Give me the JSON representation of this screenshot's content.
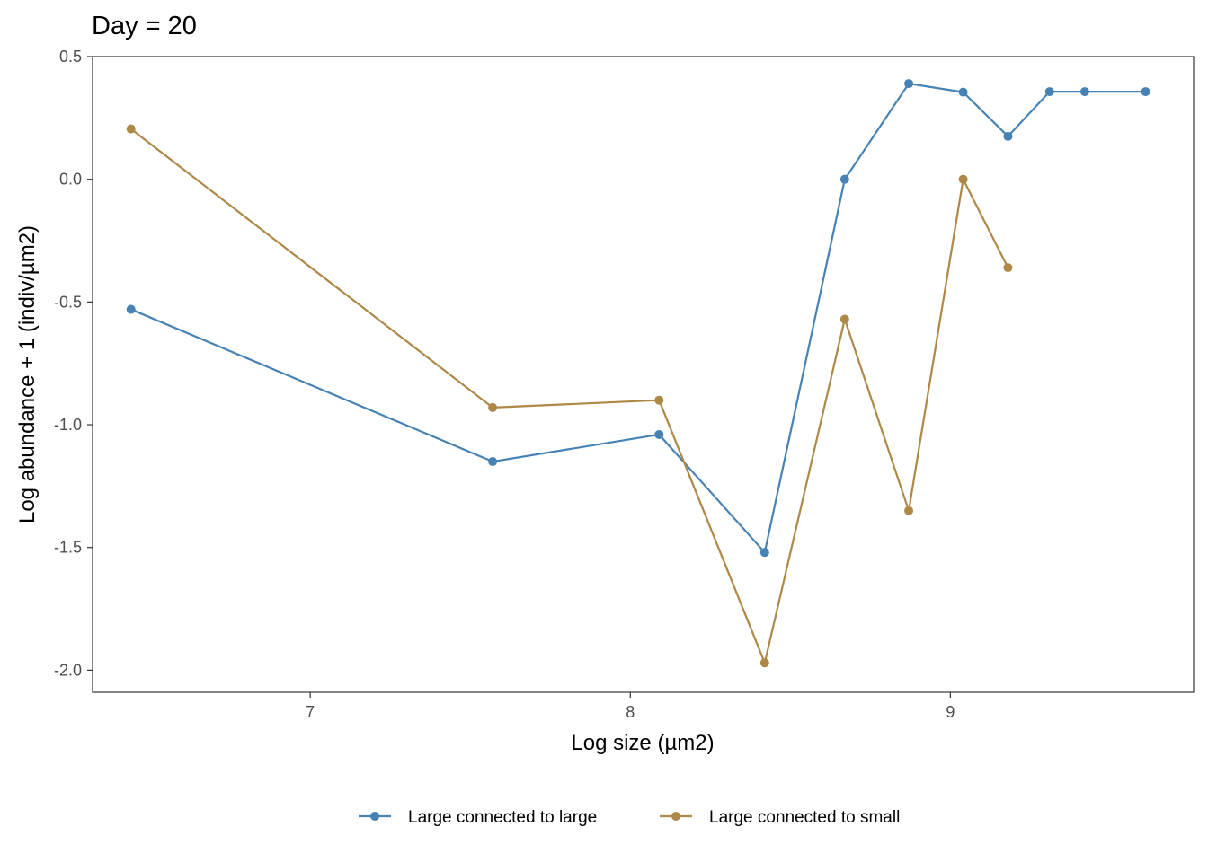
{
  "chart_data": {
    "type": "line",
    "title": "Day = 20",
    "xlabel": "Log size (µm2)",
    "ylabel": "Log abundance + 1 (indiv/µm2)",
    "xlim": [
      6.32,
      9.76
    ],
    "ylim": [
      -2.09,
      0.5
    ],
    "xticks": [
      7,
      8,
      9
    ],
    "xtick_labels": [
      "7",
      "8",
      "9"
    ],
    "yticks": [
      0.5,
      0.0,
      -0.5,
      -1.0,
      -1.5,
      -2.0
    ],
    "ytick_labels": [
      "0.5",
      "0.0",
      "-0.5",
      "-1.0",
      "-1.5",
      "-2.0"
    ],
    "grid": false,
    "legend_position": "bottom",
    "series": [
      {
        "name": "Large connected to large",
        "color": "#4682B4",
        "x": [
          6.44,
          7.57,
          8.09,
          8.42,
          8.67,
          8.87,
          9.04,
          9.18,
          9.31,
          9.42,
          9.61
        ],
        "y": [
          -0.53,
          -1.15,
          -1.04,
          -1.52,
          0.0,
          0.39,
          0.355,
          0.175,
          0.357,
          0.357,
          0.357
        ]
      },
      {
        "name": "Large connected to small",
        "color": "#AD8847",
        "x": [
          6.44,
          7.57,
          8.09,
          8.42,
          8.67,
          8.87,
          9.04,
          9.18
        ],
        "y": [
          0.205,
          -0.93,
          -0.9,
          -1.97,
          -0.57,
          -1.35,
          0.0,
          -0.36
        ]
      }
    ]
  }
}
